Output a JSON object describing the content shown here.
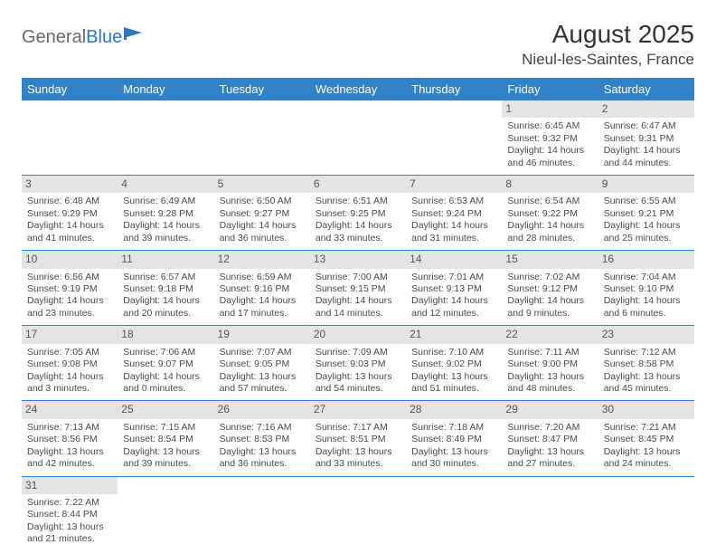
{
  "brand": {
    "part1": "General",
    "part2": "Blue"
  },
  "title": "August 2025",
  "location": "Nieul-les-Saintes, France",
  "colors": {
    "header_bg": "#3081c6",
    "header_text": "#ffffff",
    "daynum_bg": "#e4e4e4",
    "border": "#3081c6",
    "body_text": "#4a4a4a",
    "brand_gray": "#6a6a6a",
    "brand_blue": "#2b78bf"
  },
  "typography": {
    "title_fontsize": 28,
    "location_fontsize": 17,
    "header_fontsize": 13,
    "cell_fontsize": 10.5,
    "daynum_fontsize": 12
  },
  "weekdays": [
    "Sunday",
    "Monday",
    "Tuesday",
    "Wednesday",
    "Thursday",
    "Friday",
    "Saturday"
  ],
  "weeks": [
    [
      null,
      null,
      null,
      null,
      null,
      {
        "n": "1",
        "sunrise": "Sunrise: 6:45 AM",
        "sunset": "Sunset: 9:32 PM",
        "daylight": "Daylight: 14 hours and 46 minutes."
      },
      {
        "n": "2",
        "sunrise": "Sunrise: 6:47 AM",
        "sunset": "Sunset: 9:31 PM",
        "daylight": "Daylight: 14 hours and 44 minutes."
      }
    ],
    [
      {
        "n": "3",
        "sunrise": "Sunrise: 6:48 AM",
        "sunset": "Sunset: 9:29 PM",
        "daylight": "Daylight: 14 hours and 41 minutes."
      },
      {
        "n": "4",
        "sunrise": "Sunrise: 6:49 AM",
        "sunset": "Sunset: 9:28 PM",
        "daylight": "Daylight: 14 hours and 39 minutes."
      },
      {
        "n": "5",
        "sunrise": "Sunrise: 6:50 AM",
        "sunset": "Sunset: 9:27 PM",
        "daylight": "Daylight: 14 hours and 36 minutes."
      },
      {
        "n": "6",
        "sunrise": "Sunrise: 6:51 AM",
        "sunset": "Sunset: 9:25 PM",
        "daylight": "Daylight: 14 hours and 33 minutes."
      },
      {
        "n": "7",
        "sunrise": "Sunrise: 6:53 AM",
        "sunset": "Sunset: 9:24 PM",
        "daylight": "Daylight: 14 hours and 31 minutes."
      },
      {
        "n": "8",
        "sunrise": "Sunrise: 6:54 AM",
        "sunset": "Sunset: 9:22 PM",
        "daylight": "Daylight: 14 hours and 28 minutes."
      },
      {
        "n": "9",
        "sunrise": "Sunrise: 6:55 AM",
        "sunset": "Sunset: 9:21 PM",
        "daylight": "Daylight: 14 hours and 25 minutes."
      }
    ],
    [
      {
        "n": "10",
        "sunrise": "Sunrise: 6:56 AM",
        "sunset": "Sunset: 9:19 PM",
        "daylight": "Daylight: 14 hours and 23 minutes."
      },
      {
        "n": "11",
        "sunrise": "Sunrise: 6:57 AM",
        "sunset": "Sunset: 9:18 PM",
        "daylight": "Daylight: 14 hours and 20 minutes."
      },
      {
        "n": "12",
        "sunrise": "Sunrise: 6:59 AM",
        "sunset": "Sunset: 9:16 PM",
        "daylight": "Daylight: 14 hours and 17 minutes."
      },
      {
        "n": "13",
        "sunrise": "Sunrise: 7:00 AM",
        "sunset": "Sunset: 9:15 PM",
        "daylight": "Daylight: 14 hours and 14 minutes."
      },
      {
        "n": "14",
        "sunrise": "Sunrise: 7:01 AM",
        "sunset": "Sunset: 9:13 PM",
        "daylight": "Daylight: 14 hours and 12 minutes."
      },
      {
        "n": "15",
        "sunrise": "Sunrise: 7:02 AM",
        "sunset": "Sunset: 9:12 PM",
        "daylight": "Daylight: 14 hours and 9 minutes."
      },
      {
        "n": "16",
        "sunrise": "Sunrise: 7:04 AM",
        "sunset": "Sunset: 9:10 PM",
        "daylight": "Daylight: 14 hours and 6 minutes."
      }
    ],
    [
      {
        "n": "17",
        "sunrise": "Sunrise: 7:05 AM",
        "sunset": "Sunset: 9:08 PM",
        "daylight": "Daylight: 14 hours and 3 minutes."
      },
      {
        "n": "18",
        "sunrise": "Sunrise: 7:06 AM",
        "sunset": "Sunset: 9:07 PM",
        "daylight": "Daylight: 14 hours and 0 minutes."
      },
      {
        "n": "19",
        "sunrise": "Sunrise: 7:07 AM",
        "sunset": "Sunset: 9:05 PM",
        "daylight": "Daylight: 13 hours and 57 minutes."
      },
      {
        "n": "20",
        "sunrise": "Sunrise: 7:09 AM",
        "sunset": "Sunset: 9:03 PM",
        "daylight": "Daylight: 13 hours and 54 minutes."
      },
      {
        "n": "21",
        "sunrise": "Sunrise: 7:10 AM",
        "sunset": "Sunset: 9:02 PM",
        "daylight": "Daylight: 13 hours and 51 minutes."
      },
      {
        "n": "22",
        "sunrise": "Sunrise: 7:11 AM",
        "sunset": "Sunset: 9:00 PM",
        "daylight": "Daylight: 13 hours and 48 minutes."
      },
      {
        "n": "23",
        "sunrise": "Sunrise: 7:12 AM",
        "sunset": "Sunset: 8:58 PM",
        "daylight": "Daylight: 13 hours and 45 minutes."
      }
    ],
    [
      {
        "n": "24",
        "sunrise": "Sunrise: 7:13 AM",
        "sunset": "Sunset: 8:56 PM",
        "daylight": "Daylight: 13 hours and 42 minutes."
      },
      {
        "n": "25",
        "sunrise": "Sunrise: 7:15 AM",
        "sunset": "Sunset: 8:54 PM",
        "daylight": "Daylight: 13 hours and 39 minutes."
      },
      {
        "n": "26",
        "sunrise": "Sunrise: 7:16 AM",
        "sunset": "Sunset: 8:53 PM",
        "daylight": "Daylight: 13 hours and 36 minutes."
      },
      {
        "n": "27",
        "sunrise": "Sunrise: 7:17 AM",
        "sunset": "Sunset: 8:51 PM",
        "daylight": "Daylight: 13 hours and 33 minutes."
      },
      {
        "n": "28",
        "sunrise": "Sunrise: 7:18 AM",
        "sunset": "Sunset: 8:49 PM",
        "daylight": "Daylight: 13 hours and 30 minutes."
      },
      {
        "n": "29",
        "sunrise": "Sunrise: 7:20 AM",
        "sunset": "Sunset: 8:47 PM",
        "daylight": "Daylight: 13 hours and 27 minutes."
      },
      {
        "n": "30",
        "sunrise": "Sunrise: 7:21 AM",
        "sunset": "Sunset: 8:45 PM",
        "daylight": "Daylight: 13 hours and 24 minutes."
      }
    ],
    [
      {
        "n": "31",
        "sunrise": "Sunrise: 7:22 AM",
        "sunset": "Sunset: 8:44 PM",
        "daylight": "Daylight: 13 hours and 21 minutes."
      },
      null,
      null,
      null,
      null,
      null,
      null
    ]
  ]
}
